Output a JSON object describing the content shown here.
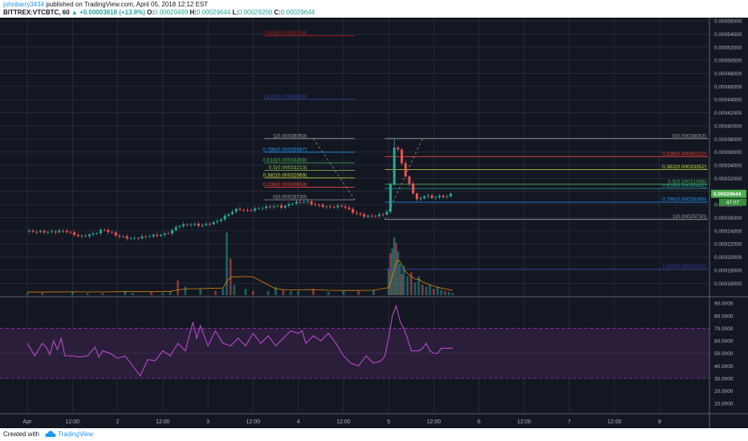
{
  "header": {
    "username": "johnbarry3434",
    "published_text": "published on TradingView.com, April 05, 2018 12:12 EST",
    "symbol": "BITTREX:VTCBTC, 60",
    "change": "▲ +0.00003618 (+13.9%)",
    "o_label": "O:",
    "o_value": "0.00029499",
    "h_label": "H:",
    "h_value": "0.00029644",
    "l_label": "L:",
    "l_value": "0.00029200",
    "c_label": "C:",
    "c_value": "0.00029644"
  },
  "footer": {
    "created_with": "Created with",
    "brand": "TradingView"
  },
  "chart_data": [
    {
      "type": "candlestick",
      "title": "BITTREX:VTCBTC, 60",
      "ylim": [
        0.000142,
        0.000565
      ],
      "y_ticks": [
        "0.00056000",
        "0.00054000",
        "0.00052000",
        "0.00050000",
        "0.00048000",
        "0.00046000",
        "0.00044000",
        "0.00042000",
        "0.00040000",
        "0.00038000",
        "0.00036000",
        "0.00034000",
        "0.00032000",
        "0.00030000",
        "0.00028000",
        "0.00026000",
        "0.00024000",
        "0.00022000",
        "0.00020000",
        "0.00018000",
        "0.00016000"
      ],
      "y_tick_values": [
        0.00056,
        0.00054,
        0.00052,
        0.0005,
        0.00048,
        0.00046,
        0.00044,
        0.00042,
        0.0004,
        0.00038,
        0.00036,
        0.00034,
        0.00032,
        0.0003,
        0.00028,
        0.00026,
        0.00024,
        0.00022,
        0.0002,
        0.00018,
        0.00016
      ],
      "x_ticks": [
        "Apr",
        "12:00",
        "2",
        "12:00",
        "3",
        "12:00",
        "4",
        "12:00",
        "5",
        "12:00",
        "6",
        "12:00",
        "7",
        "12:00",
        "8"
      ],
      "x_tick_hours": [
        0,
        12,
        24,
        36,
        48,
        60,
        72,
        84,
        96,
        108,
        120,
        132,
        144,
        156,
        168
      ],
      "price_path": [
        [
          0,
          0.000239
        ],
        [
          6,
          0.000238
        ],
        [
          10,
          0.00024
        ],
        [
          14,
          0.000231
        ],
        [
          18,
          0.000236
        ],
        [
          20,
          0.000242
        ],
        [
          22,
          0.000238
        ],
        [
          24,
          0.000232
        ],
        [
          28,
          0.000228
        ],
        [
          32,
          0.000232
        ],
        [
          36,
          0.000234
        ],
        [
          38,
          0.000238
        ],
        [
          40,
          0.000248
        ],
        [
          44,
          0.00025
        ],
        [
          46,
          0.000248
        ],
        [
          50,
          0.000253
        ],
        [
          52,
          0.00026
        ],
        [
          54,
          0.000268
        ],
        [
          56,
          0.000274
        ],
        [
          58,
          0.00027
        ],
        [
          62,
          0.000275
        ],
        [
          66,
          0.000278
        ],
        [
          68,
          0.000276
        ],
        [
          70,
          0.000282
        ],
        [
          74,
          0.000285
        ],
        [
          76,
          0.00028
        ],
        [
          80,
          0.000276
        ],
        [
          84,
          0.000278
        ],
        [
          86,
          0.00027
        ],
        [
          88,
          0.000265
        ],
        [
          90,
          0.000262
        ],
        [
          92,
          0.000263
        ],
        [
          94,
          0.000264
        ],
        [
          95,
          0.000267
        ],
        [
          96,
          0.000272
        ],
        [
          96.5,
          0.00031
        ],
        [
          97,
          0.000345
        ],
        [
          97.5,
          0.000368
        ],
        [
          98,
          0.000372
        ],
        [
          99,
          0.000355
        ],
        [
          100,
          0.00033
        ],
        [
          101,
          0.000318
        ],
        [
          102,
          0.000304
        ],
        [
          103,
          0.00029
        ],
        [
          104,
          0.000288
        ],
        [
          105,
          0.000289
        ],
        [
          106,
          0.000298
        ],
        [
          107,
          0.00029
        ],
        [
          108,
          0.000288
        ],
        [
          109,
          0.000296
        ],
        [
          110,
          0.00029
        ],
        [
          111,
          0.000292
        ],
        [
          112,
          0.000295
        ],
        [
          113,
          0.000296
        ]
      ],
      "fib_retracement_1": {
        "levels": [
          {
            "label": "2.318(0.00053754)",
            "value": 0.00053754,
            "color": "#b71c1c"
          },
          {
            "label": "1.618(0.00044059)",
            "value": 0.00044059,
            "color": "#303f9f"
          },
          {
            "label": "1(0.00038063)",
            "value": 0.00038063,
            "color": "#9e9e9e"
          },
          {
            "label": "0.786(0.00035987)",
            "value": 0.00035987,
            "color": "#2196f3"
          },
          {
            "label": "0.618(0.00034358)",
            "value": 0.00034358,
            "color": "#4caf50"
          },
          {
            "label": "0.5(0.00033213)",
            "value": 0.00033213,
            "color": "#8bc34a"
          },
          {
            "label": "0.382(0.00032069)",
            "value": 0.00032069,
            "color": "#cddc39"
          },
          {
            "label": "0.236(0.00030653)",
            "value": 0.00030653,
            "color": "#f44336"
          },
          {
            "label": "0(0.00028730)",
            "value": 0.0002873,
            "color": "#9e9e9e"
          }
        ]
      },
      "fib_retracement_2": {
        "levels": [
          {
            "label": "0(0.00038063)",
            "value": 0.00038063,
            "color": "#9e9e9e"
          },
          {
            "label": "0.236(0.00035312)",
            "value": 0.00035312,
            "color": "#f44336"
          },
          {
            "label": "0.382(0.00033352)",
            "value": 0.00033352,
            "color": "#cddc39"
          },
          {
            "label": "0.5(0.00031096)",
            "value": 0.00031096,
            "color": "#4caf50"
          },
          {
            "label": "0.618(0.00030441)",
            "value": 0.00030441,
            "color": "#26a69a"
          },
          {
            "label": "0.786(0.00028369)",
            "value": 0.00028369,
            "color": "#2196f3"
          },
          {
            "label": "1(0.00025730)",
            "value": 0.0002573,
            "color": "#9e9e9e"
          },
          {
            "label": "1.618(0.00018193)",
            "value": 0.00018193,
            "color": "#303f9f"
          }
        ]
      },
      "last_price_label": "0.00029644",
      "countdown_label": "47:07",
      "colors": {
        "up": "#26a69a",
        "down": "#ef5350",
        "background": "#131722",
        "grid": "#363c4e",
        "axis_text": "#b2b5be",
        "price_badge": "#4caf50"
      }
    },
    {
      "type": "line",
      "ylim": [
        3,
        94
      ],
      "y_ticks": [
        "90.0000",
        "80.0000",
        "70.0000",
        "60.0000",
        "50.0000",
        "40.0000",
        "30.0000",
        "20.0000",
        "10.0000"
      ],
      "y_tick_values": [
        90,
        80,
        70,
        60,
        50,
        40,
        30,
        20,
        10
      ],
      "band": [
        30,
        70
      ],
      "series": [
        {
          "points": [
            [
              0,
              58
            ],
            [
              2,
              48
            ],
            [
              4,
              58
            ],
            [
              5,
              55
            ],
            [
              6,
              49
            ],
            [
              7,
              60
            ],
            [
              8,
              53
            ],
            [
              9,
              62
            ],
            [
              10,
              48
            ],
            [
              12,
              48
            ],
            [
              14,
              47
            ],
            [
              16,
              48
            ],
            [
              18,
              55
            ],
            [
              19,
              47
            ],
            [
              20,
              52
            ],
            [
              22,
              50
            ],
            [
              24,
              46
            ],
            [
              26,
              48
            ],
            [
              28,
              40
            ],
            [
              30,
              32
            ],
            [
              32,
              45
            ],
            [
              34,
              44
            ],
            [
              36,
              52
            ],
            [
              38,
              48
            ],
            [
              40,
              58
            ],
            [
              42,
              52
            ],
            [
              44,
              75
            ],
            [
              45,
              62
            ],
            [
              46,
              72
            ],
            [
              48,
              56
            ],
            [
              50,
              68
            ],
            [
              52,
              58
            ],
            [
              54,
              56
            ],
            [
              56,
              62
            ],
            [
              58,
              56
            ],
            [
              60,
              66
            ],
            [
              62,
              58
            ],
            [
              64,
              64
            ],
            [
              66,
              56
            ],
            [
              68,
              62
            ],
            [
              70,
              68
            ],
            [
              72,
              66
            ],
            [
              73,
              68
            ],
            [
              74,
              58
            ],
            [
              76,
              64
            ],
            [
              78,
              60
            ],
            [
              80,
              66
            ],
            [
              82,
              58
            ],
            [
              84,
              48
            ],
            [
              86,
              42
            ],
            [
              88,
              40
            ],
            [
              90,
              48
            ],
            [
              92,
              42
            ],
            [
              94,
              44
            ],
            [
              95,
              48
            ],
            [
              96,
              62
            ],
            [
              97,
              80
            ],
            [
              98,
              88
            ],
            [
              99,
              76
            ],
            [
              100,
              70
            ],
            [
              101,
              62
            ],
            [
              102,
              52
            ],
            [
              104,
              52
            ],
            [
              105,
              54
            ],
            [
              106,
              58
            ],
            [
              107,
              52
            ],
            [
              108,
              50
            ],
            [
              109,
              50
            ],
            [
              110,
              54
            ],
            [
              112,
              54
            ],
            [
              113,
              54
            ]
          ],
          "color": "#ab47bc"
        }
      ],
      "colors": {
        "band_fill": "#2a1e3b",
        "band_line": "#9c27b0"
      }
    }
  ],
  "volume": {
    "bars": [
      [
        0,
        2
      ],
      [
        4,
        2
      ],
      [
        12,
        3
      ],
      [
        16,
        2
      ],
      [
        20,
        2
      ],
      [
        26,
        4
      ],
      [
        28,
        2
      ],
      [
        33,
        3
      ],
      [
        36,
        2
      ],
      [
        38,
        4
      ],
      [
        40,
        14
      ],
      [
        42,
        8
      ],
      [
        46,
        6
      ],
      [
        50,
        4
      ],
      [
        52,
        6
      ],
      [
        53,
        60
      ],
      [
        54,
        35
      ],
      [
        55,
        10
      ],
      [
        58,
        6
      ],
      [
        60,
        4
      ],
      [
        64,
        4
      ],
      [
        66,
        8
      ],
      [
        68,
        5
      ],
      [
        70,
        4
      ],
      [
        72,
        4
      ],
      [
        76,
        6
      ],
      [
        80,
        3
      ],
      [
        84,
        4
      ],
      [
        88,
        4
      ],
      [
        92,
        5
      ],
      [
        96,
        25
      ],
      [
        96.5,
        40
      ],
      [
        97,
        45
      ],
      [
        97.5,
        55
      ],
      [
        98,
        50
      ],
      [
        98.5,
        42
      ],
      [
        99,
        30
      ],
      [
        99.5,
        20
      ],
      [
        100,
        28
      ],
      [
        101,
        18
      ],
      [
        102,
        22
      ],
      [
        103,
        12
      ],
      [
        104,
        18
      ],
      [
        105,
        10
      ],
      [
        106,
        8
      ],
      [
        107,
        10
      ],
      [
        108,
        6
      ],
      [
        109,
        8
      ],
      [
        110,
        5
      ],
      [
        111,
        4
      ],
      [
        112,
        3
      ],
      [
        113,
        2
      ]
    ],
    "colors": {
      "up": "#26a69a",
      "down": "#ef5350",
      "ma": "#ff9800"
    }
  }
}
